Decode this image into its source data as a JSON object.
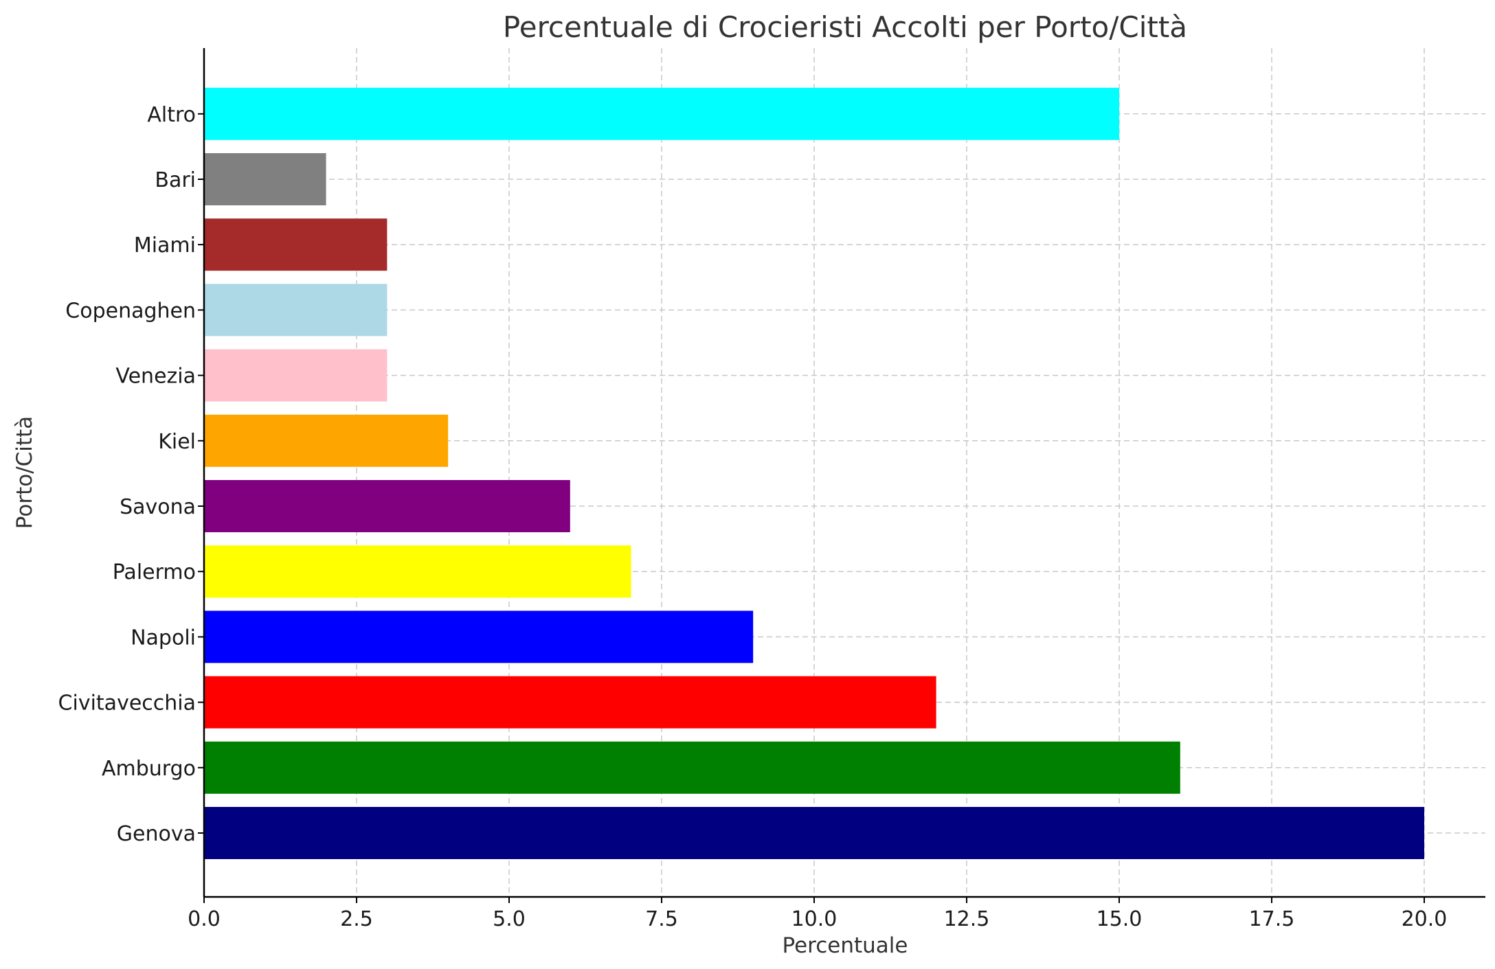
{
  "chart_data": {
    "type": "bar",
    "orientation": "horizontal",
    "title": "Percentuale di Crocieristi Accolti per Porto/Città",
    "xlabel": "Percentuale",
    "ylabel": "Porto/Città",
    "xlim": [
      0,
      21
    ],
    "xticks": [
      0,
      2.5,
      5,
      7.5,
      10,
      12.5,
      15,
      17.5,
      20
    ],
    "xtick_labels": [
      "0.0",
      "2.5",
      "5.0",
      "7.5",
      "10.0",
      "12.5",
      "15.0",
      "17.5",
      "20.0"
    ],
    "grid": true,
    "categories": [
      "Genova",
      "Amburgo",
      "Civitavecchia",
      "Napoli",
      "Palermo",
      "Savona",
      "Kiel",
      "Venezia",
      "Copenaghen",
      "Miami",
      "Bari",
      "Altro"
    ],
    "values": [
      20,
      16,
      12,
      9,
      7,
      6,
      4,
      3,
      3,
      3,
      2,
      15
    ],
    "colors": [
      "#000080",
      "#008000",
      "#ff0000",
      "#0000ff",
      "#ffff00",
      "#800080",
      "#ffa500",
      "#ffc0cb",
      "#add8e6",
      "#a52a2a",
      "#808080",
      "#00ffff"
    ]
  }
}
